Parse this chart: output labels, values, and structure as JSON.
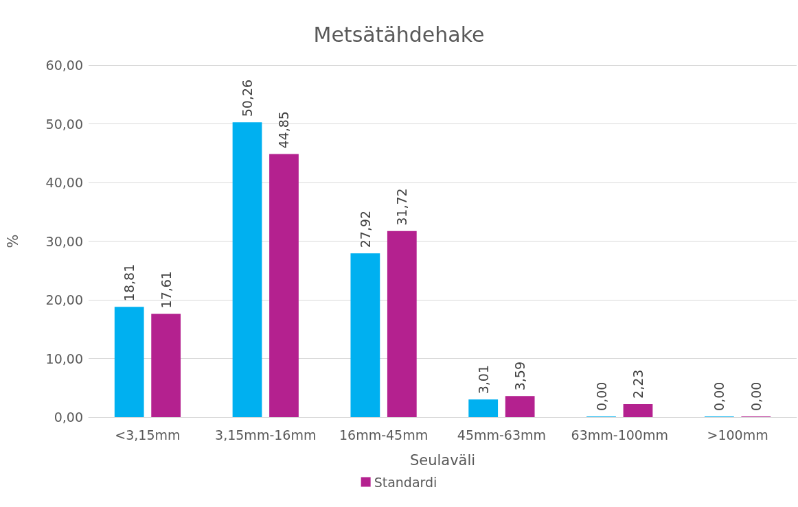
{
  "chart_data": {
    "type": "bar",
    "title": "Metsätähdehake",
    "xlabel": "Seulaväli",
    "ylabel": "%",
    "categories": [
      "<3,15mm",
      "3,15mm-16mm",
      "16mm-45mm",
      "45mm-63mm",
      "63mm-100mm",
      ">100mm"
    ],
    "series": [
      {
        "color": "#00b0f0",
        "values": [
          18.81,
          50.26,
          27.92,
          3.01,
          0,
          0
        ],
        "value_labels": [
          "18,81",
          "50,26",
          "27,92",
          "3,01",
          "0,00",
          "0,00"
        ]
      },
      {
        "name": "Standardi",
        "color": "#b4218f",
        "values": [
          17.61,
          44.85,
          31.72,
          3.59,
          2.23,
          0
        ],
        "value_labels": [
          "17,61",
          "44,85",
          "31,72",
          "3,59",
          "2,23",
          "0,00"
        ]
      }
    ],
    "ylim": [
      0,
      60
    ],
    "yticks": [
      {
        "value": 0,
        "label": "0,00"
      },
      {
        "value": 10,
        "label": "10,00"
      },
      {
        "value": 20,
        "label": "20,00"
      },
      {
        "value": 30,
        "label": "30,00"
      },
      {
        "value": 40,
        "label": "40,00"
      },
      {
        "value": 50,
        "label": "50,00"
      },
      {
        "value": 60,
        "label": "60,00"
      }
    ],
    "grid": "y",
    "legend": "bottom"
  }
}
